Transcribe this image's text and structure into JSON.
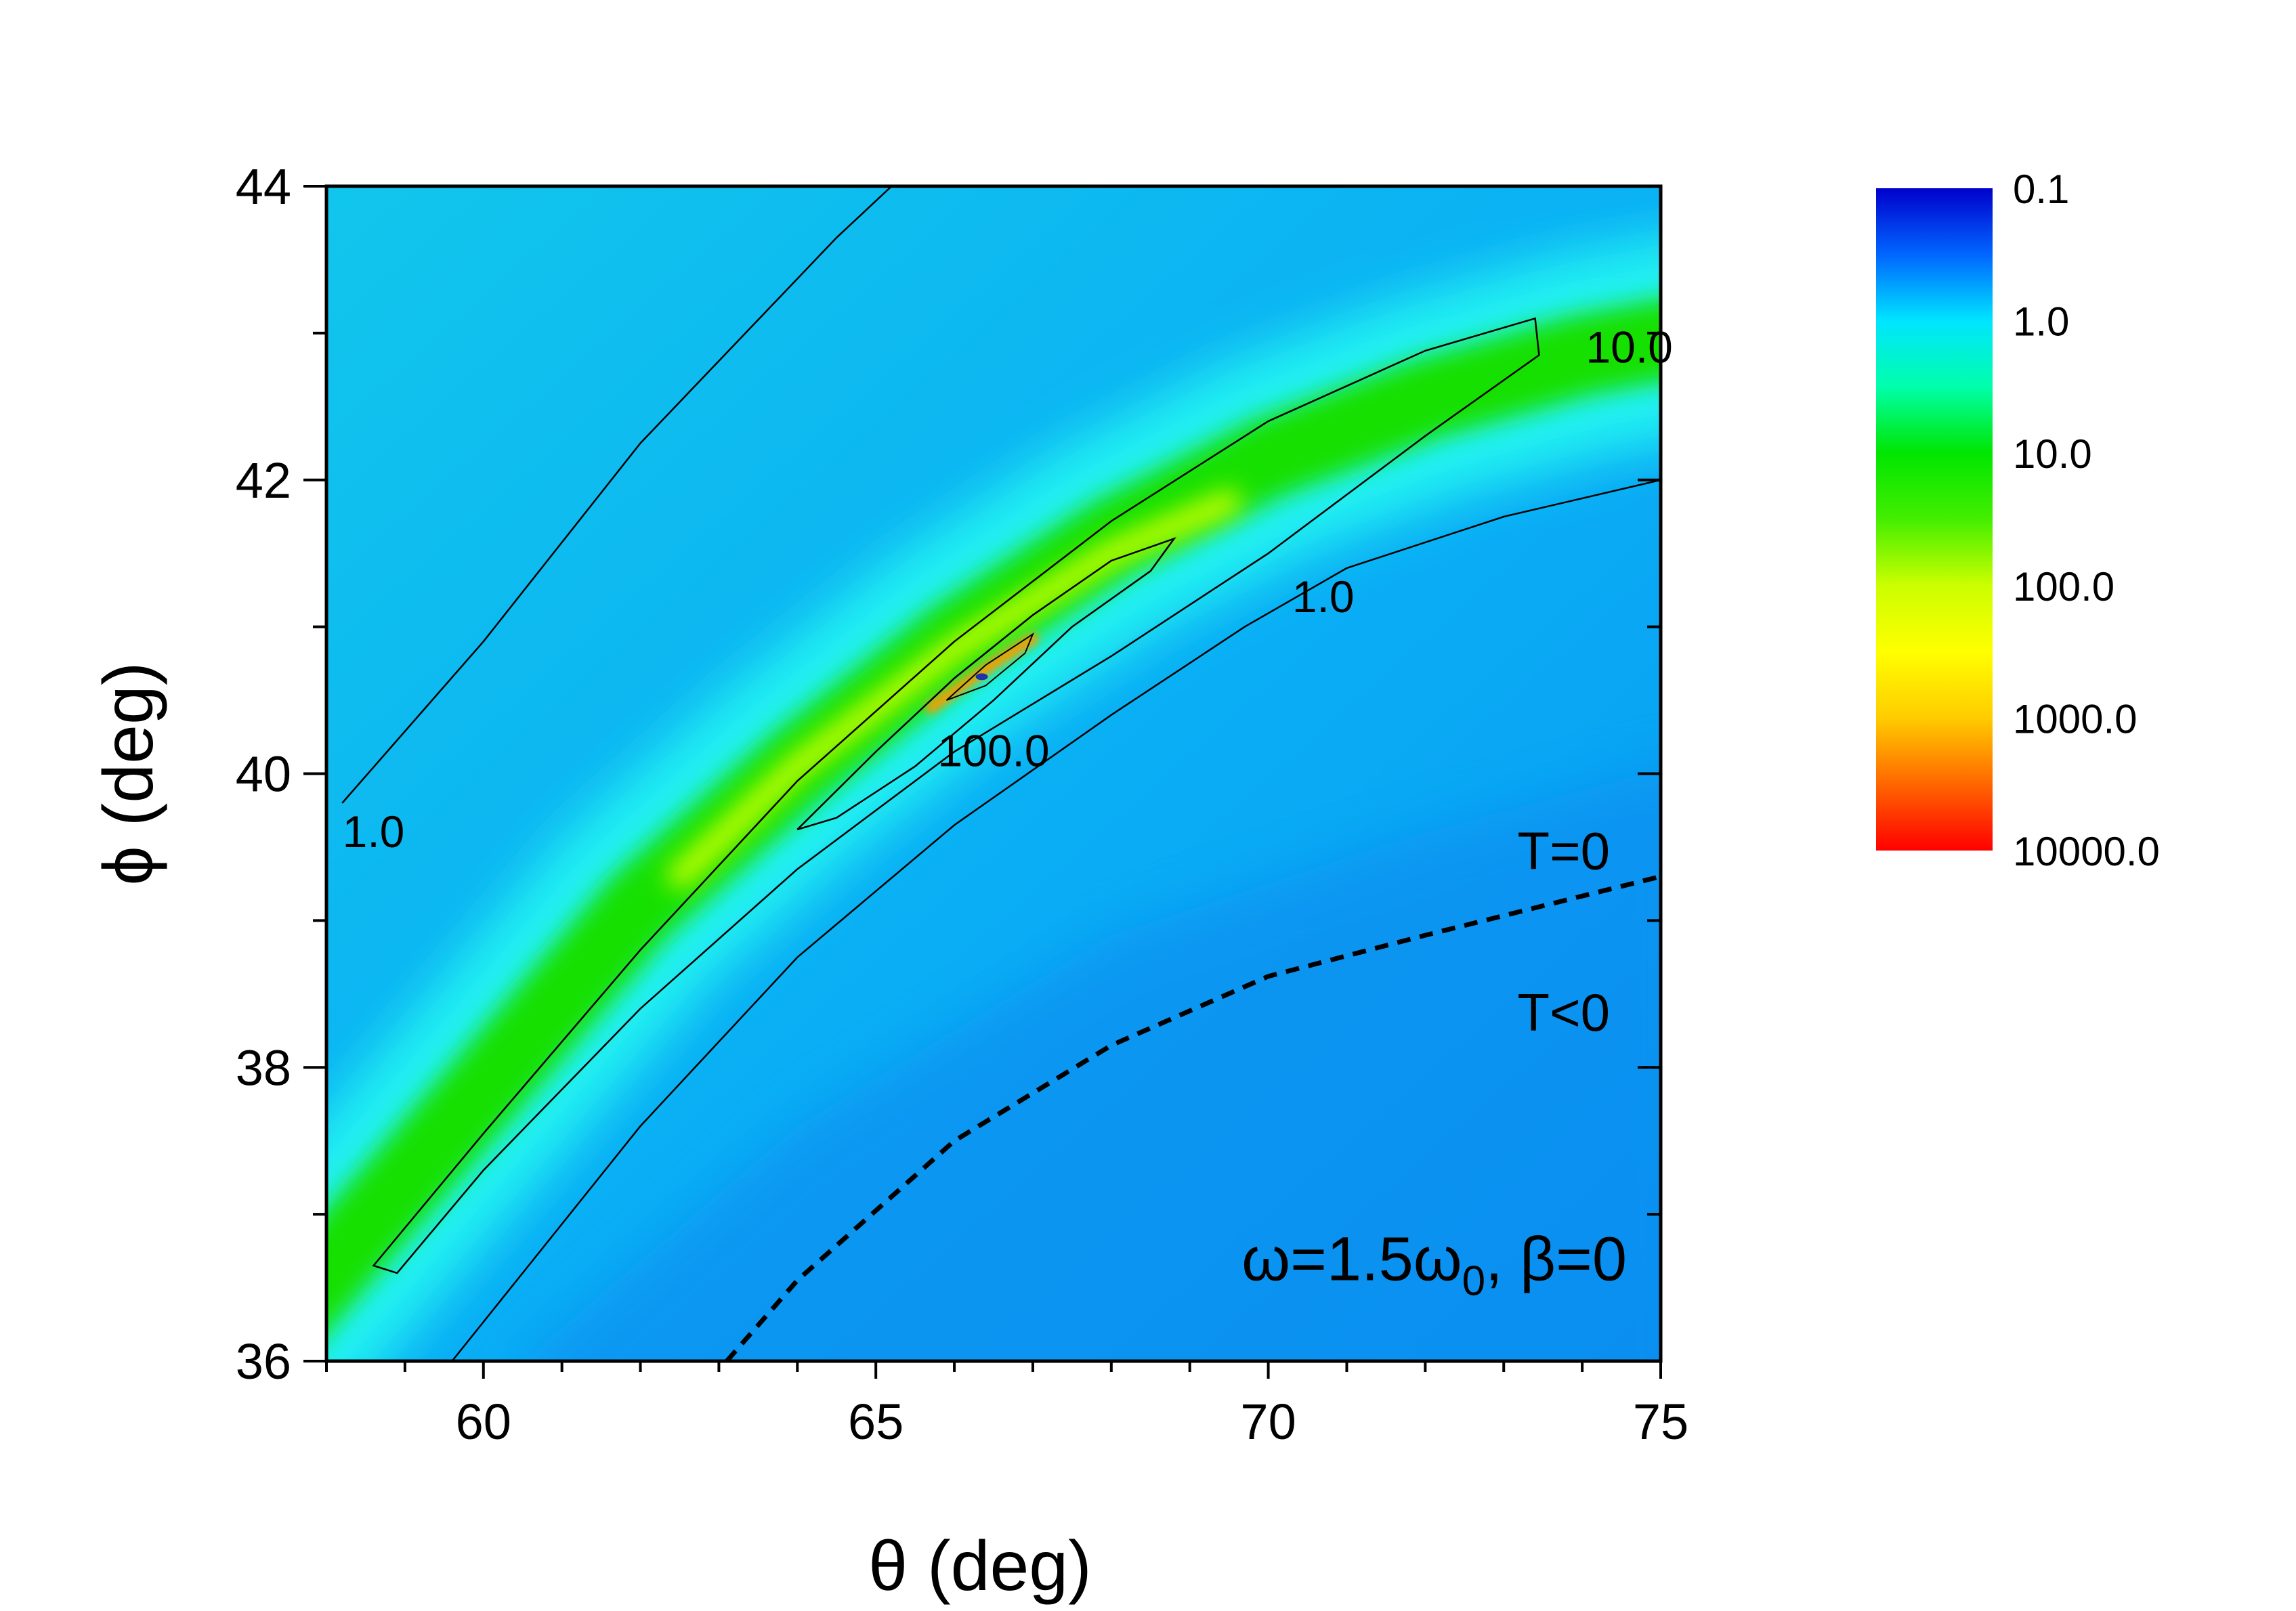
{
  "chart_data": {
    "type": "heatmap",
    "title": "",
    "xlabel": "θ (deg)",
    "ylabel": "ϕ (deg)",
    "xlim": [
      58,
      75
    ],
    "ylim": [
      36,
      44
    ],
    "x_ticks": [
      "60",
      "65",
      "70",
      "75"
    ],
    "x_tick_values": [
      60,
      65,
      70,
      75
    ],
    "x_minor_step": 1,
    "y_ticks": [
      "36",
      "38",
      "40",
      "42",
      "44"
    ],
    "y_tick_values": [
      36,
      38,
      40,
      42,
      44
    ],
    "y_minor_step": 1,
    "grid": false,
    "colorscale": {
      "scale": "log",
      "labels": [
        "0.1",
        "1.0",
        "10.0",
        "100.0",
        "1000.0",
        "10000.0"
      ],
      "values": [
        0.1,
        1,
        10,
        100,
        1000,
        10000
      ],
      "colors": [
        "#0000cc",
        "#00e5ff",
        "#00e600",
        "#ccff00",
        "#ffdd00",
        "#ff0000"
      ],
      "orientation": "vertical",
      "placement": "right"
    },
    "contours": [
      {
        "level": 1.0,
        "label": "1.0",
        "points": [
          [
            58.2,
            39.8
          ],
          [
            60,
            40.9
          ],
          [
            62,
            42.25
          ],
          [
            64.5,
            43.65
          ],
          [
            65.2,
            44.0
          ]
        ]
      },
      {
        "level": 1.0,
        "label": "1.0",
        "points": [
          [
            59.6,
            36.0
          ],
          [
            62,
            37.6
          ],
          [
            64,
            38.75
          ],
          [
            66,
            39.65
          ],
          [
            68,
            40.4
          ],
          [
            69.7,
            41.0
          ],
          [
            71,
            41.4
          ],
          [
            73,
            41.75
          ],
          [
            75,
            42.0
          ]
        ]
      },
      {
        "level": 10.0,
        "label": "10.0",
        "closed": true,
        "points": [
          [
            58.6,
            36.65
          ],
          [
            60,
            37.55
          ],
          [
            62,
            38.8
          ],
          [
            64,
            39.95
          ],
          [
            66,
            40.9
          ],
          [
            68,
            41.72
          ],
          [
            70,
            42.4
          ],
          [
            72,
            42.88
          ],
          [
            73.4,
            43.1
          ],
          [
            73.45,
            42.85
          ],
          [
            72,
            42.3
          ],
          [
            70,
            41.5
          ],
          [
            68,
            40.8
          ],
          [
            66,
            40.15
          ],
          [
            64,
            39.35
          ],
          [
            62,
            38.4
          ],
          [
            60,
            37.3
          ],
          [
            58.9,
            36.6
          ]
        ]
      },
      {
        "level": 100.0,
        "label": "100.0",
        "closed": true,
        "points": [
          [
            64.0,
            39.62
          ],
          [
            65,
            40.15
          ],
          [
            66,
            40.65
          ],
          [
            67,
            41.08
          ],
          [
            68,
            41.45
          ],
          [
            68.8,
            41.6
          ],
          [
            68.5,
            41.38
          ],
          [
            67.5,
            41.0
          ],
          [
            66.5,
            40.5
          ],
          [
            65.5,
            40.05
          ],
          [
            64.5,
            39.7
          ],
          [
            64.0,
            39.62
          ]
        ]
      },
      {
        "level": 1000.0,
        "label": "",
        "closed": true,
        "points": [
          [
            65.9,
            40.5
          ],
          [
            66.4,
            40.74
          ],
          [
            67.0,
            40.95
          ],
          [
            66.9,
            40.82
          ],
          [
            66.4,
            40.6
          ],
          [
            65.9,
            40.5
          ]
        ]
      }
    ],
    "boundary": {
      "label": "T=0",
      "style": "dashed",
      "points": [
        [
          63.1,
          36.0
        ],
        [
          64,
          36.55
        ],
        [
          66,
          37.5
        ],
        [
          68,
          38.15
        ],
        [
          70,
          38.62
        ],
        [
          72,
          38.9
        ],
        [
          75,
          39.3
        ]
      ]
    },
    "annotations": {
      "region_zero": "T=0",
      "region_negative": "T<0",
      "params_prefix": "ω=1.5ω",
      "params_sub": "0",
      "params_suffix": ", β=0"
    }
  }
}
